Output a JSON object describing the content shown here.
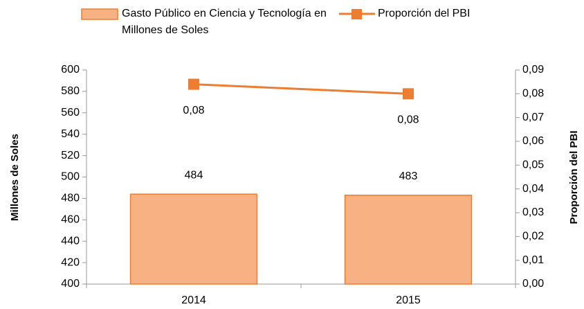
{
  "chart_data": {
    "type": "combo",
    "categories": [
      "2014",
      "2015"
    ],
    "series": [
      {
        "name": "Gasto Público en Ciencia y Tecnología en Millones de Soles",
        "type": "bar",
        "color": "#f8b183",
        "edgecolor": "#ed7d31",
        "values": [
          484,
          483
        ]
      },
      {
        "name": "Proporción del PBI",
        "type": "line",
        "axis": "y2",
        "color": "#ed7d31",
        "values": [
          0.084,
          0.08
        ],
        "value_labels": [
          "0,08",
          "0,08"
        ]
      }
    ],
    "ylabel": "Millones de Soles",
    "y2label": "Proporción del PBI",
    "ylim": [
      400,
      600
    ],
    "yticks": [
      400,
      420,
      440,
      460,
      480,
      500,
      520,
      540,
      560,
      580,
      600
    ],
    "y2lim": [
      0,
      0.09
    ],
    "y2ticks": [
      {
        "value": 0,
        "label": "0,00"
      },
      {
        "value": 0.01,
        "label": "0,01"
      },
      {
        "value": 0.02,
        "label": "0,02"
      },
      {
        "value": 0.03,
        "label": "0,03"
      },
      {
        "value": 0.04,
        "label": "0,04"
      },
      {
        "value": 0.05,
        "label": "0,05"
      },
      {
        "value": 0.06,
        "label": "0,06"
      },
      {
        "value": 0.07,
        "label": "0,07"
      },
      {
        "value": 0.08,
        "label": "0,08"
      },
      {
        "value": 0.09,
        "label": "0,09"
      }
    ],
    "legend": "top"
  }
}
